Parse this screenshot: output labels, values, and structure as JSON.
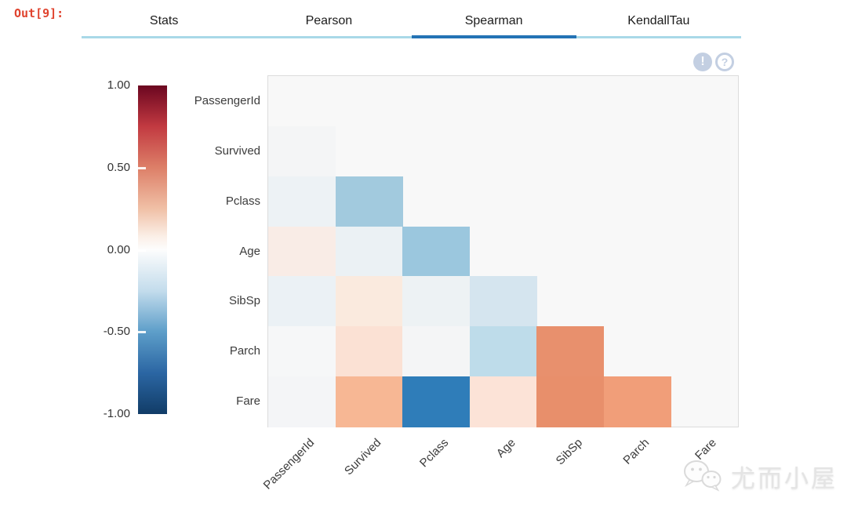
{
  "prompt": {
    "label": "Out[9]:",
    "color": "#e0432e"
  },
  "tabs": {
    "underline_color": "#a9d9e8",
    "active_underline_color": "#2473b5",
    "items": [
      {
        "label": "Stats",
        "active": false
      },
      {
        "label": "Pearson",
        "active": false
      },
      {
        "label": "Spearman",
        "active": true
      },
      {
        "label": "KendallTau",
        "active": false
      }
    ]
  },
  "toolbar": {
    "insight_icon_glyph": "!",
    "help_icon_glyph": "?",
    "icon_color": "#c3cfe2"
  },
  "watermark": {
    "text": "尤而小屋",
    "icon": "wechat-logo"
  },
  "chart_data": {
    "type": "heatmap",
    "title": "Spearman correlation matrix (lower triangle, diagonal hidden)",
    "method": "Spearman",
    "variables": [
      "PassengerId",
      "Survived",
      "Pclass",
      "Age",
      "SibSp",
      "Parch",
      "Fare"
    ],
    "plot_bg": "#f8f8f8",
    "grid": false,
    "colorbar": {
      "position": "left",
      "range": [
        -1,
        1
      ],
      "tick_labels": [
        "1.00",
        "0.50",
        "0.00",
        "-0.50",
        "-1.00"
      ],
      "gradient": [
        {
          "stop": 0.0,
          "color": "#6b0620"
        },
        {
          "stop": 0.125,
          "color": "#c23a41"
        },
        {
          "stop": 0.25,
          "color": "#dd7f68"
        },
        {
          "stop": 0.375,
          "color": "#f0c0a6"
        },
        {
          "stop": 0.46,
          "color": "#fbefe7"
        },
        {
          "stop": 0.5,
          "color": "#fdfdfd"
        },
        {
          "stop": 0.54,
          "color": "#eaf2f7"
        },
        {
          "stop": 0.625,
          "color": "#c3dcec"
        },
        {
          "stop": 0.75,
          "color": "#5d9ec9"
        },
        {
          "stop": 0.875,
          "color": "#2b66a3"
        },
        {
          "stop": 1.0,
          "color": "#113c67"
        }
      ]
    },
    "cells": [
      {
        "row": "Survived",
        "col": "PassengerId",
        "value": -0.01,
        "color": "#f4f5f6"
      },
      {
        "row": "Pclass",
        "col": "PassengerId",
        "value": -0.04,
        "color": "#edf2f5"
      },
      {
        "row": "Pclass",
        "col": "Survived",
        "value": -0.34,
        "color": "#a2cade"
      },
      {
        "row": "Age",
        "col": "PassengerId",
        "value": 0.04,
        "color": "#f9ece6"
      },
      {
        "row": "Age",
        "col": "Survived",
        "value": -0.05,
        "color": "#ebf1f4"
      },
      {
        "row": "Age",
        "col": "Pclass",
        "value": -0.37,
        "color": "#9bc7de"
      },
      {
        "row": "SibSp",
        "col": "PassengerId",
        "value": -0.06,
        "color": "#ebf1f5"
      },
      {
        "row": "SibSp",
        "col": "Survived",
        "value": 0.09,
        "color": "#faeade"
      },
      {
        "row": "SibSp",
        "col": "Pclass",
        "value": -0.05,
        "color": "#edf2f4"
      },
      {
        "row": "SibSp",
        "col": "Age",
        "value": -0.19,
        "color": "#d5e5ef"
      },
      {
        "row": "Parch",
        "col": "PassengerId",
        "value": -0.01,
        "color": "#f6f7f8"
      },
      {
        "row": "Parch",
        "col": "Survived",
        "value": 0.14,
        "color": "#fbe1d4"
      },
      {
        "row": "Parch",
        "col": "Pclass",
        "value": 0.02,
        "color": "#f4f5f6"
      },
      {
        "row": "Parch",
        "col": "Age",
        "value": -0.25,
        "color": "#bedcea"
      },
      {
        "row": "Parch",
        "col": "SibSp",
        "value": 0.45,
        "color": "#e8906d"
      },
      {
        "row": "Fare",
        "col": "PassengerId",
        "value": 0.01,
        "color": "#f4f5f7"
      },
      {
        "row": "Fare",
        "col": "Survived",
        "value": 0.32,
        "color": "#f7b794"
      },
      {
        "row": "Fare",
        "col": "Pclass",
        "value": -0.69,
        "color": "#2f7db9"
      },
      {
        "row": "Fare",
        "col": "Age",
        "value": 0.14,
        "color": "#fce3d7"
      },
      {
        "row": "Fare",
        "col": "SibSp",
        "value": 0.45,
        "color": "#e88f6b"
      },
      {
        "row": "Fare",
        "col": "Parch",
        "value": 0.41,
        "color": "#f19e79"
      }
    ]
  }
}
